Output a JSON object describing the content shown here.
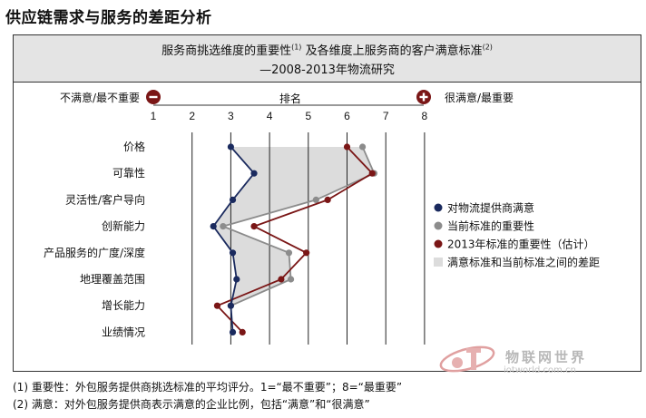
{
  "title": "供应链需求与服务的差距分析",
  "header": {
    "line1_main": "服务商挑选维度的重要性",
    "line1_sup1": "(1)",
    "line1_rest": " 及各维度上服务商的客户满意标准",
    "line1_sup2": "(2)",
    "line2": "—2008-2013年物流研究"
  },
  "scale": {
    "left_label": "不满意/最不重要",
    "right_label": "很满意/最重要",
    "center_label": "排名",
    "left_icon": "minus-icon",
    "right_icon": "plus-icon"
  },
  "chart_data": {
    "type": "line",
    "orientation": "horizontal-rank",
    "x_ticks": [
      1,
      2,
      3,
      4,
      5,
      6,
      7,
      8
    ],
    "xlim": [
      1,
      8
    ],
    "categories": [
      "价格",
      "可靠性",
      "灵活性/客户导向",
      "创新能力",
      "产品服务的广度/深度",
      "地理覆盖范围",
      "增长能力",
      "业绩情况"
    ],
    "series": [
      {
        "name": "对物流提供商满意",
        "color": "#1a2a5e",
        "values": [
          3.0,
          3.6,
          3.05,
          2.55,
          3.05,
          3.15,
          3.0,
          3.05
        ]
      },
      {
        "name": "当前标准的重要性",
        "color": "#8c8c8c",
        "values": [
          6.4,
          6.7,
          5.2,
          2.8,
          4.5,
          4.55,
          3.0,
          null
        ]
      },
      {
        "name": "2013年标准的重要性（估计）",
        "color": "#7a1616",
        "values": [
          6.0,
          6.65,
          5.5,
          3.6,
          4.95,
          4.3,
          2.65,
          3.3
        ]
      }
    ],
    "gap_legend": "满意标准和当前标准之间的差距",
    "gap_color": "#dcdcdc",
    "grid": true,
    "legend_position": "right"
  },
  "footnotes": [
    "(1) 重要性：外包服务提供商挑选标准的平均评分。1=“最不重要”；8=“最重要”",
    "(2) 满意：对外包服务提供商表示满意的企业比例，包括“满意”和“很满意”"
  ],
  "watermark": {
    "name": "物联网世界",
    "site": "iotworld.com.cn"
  }
}
